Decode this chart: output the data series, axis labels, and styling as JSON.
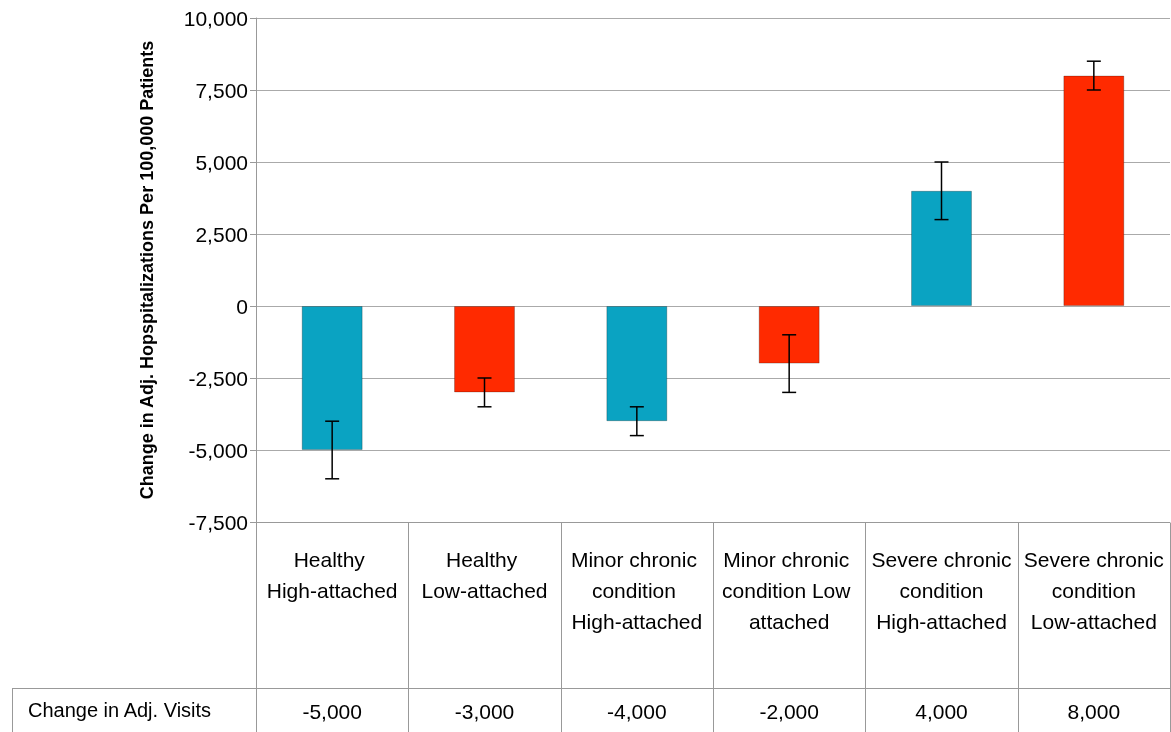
{
  "chart_data": {
    "type": "bar",
    "ylabel": "Change in Adj. Hopspitalizations Per 100,000 Patients",
    "categories": [
      "Healthy High-attached",
      "Healthy Low-attached",
      "Minor chronic condition High-attached",
      "Minor chronic condition Low attached",
      "Severe chronic condition High-attached",
      "Severe chronic condition Low-attached"
    ],
    "values": [
      -5000,
      -3000,
      -4000,
      -2000,
      4000,
      8000
    ],
    "colors": [
      "#0aa3c2",
      "#ff2a00",
      "#0aa3c2",
      "#ff2a00",
      "#0aa3c2",
      "#ff2a00"
    ],
    "errors": [
      1000,
      500,
      500,
      1000,
      1000,
      500
    ],
    "value_labels": [
      "-5,000",
      "-3,000",
      "-4,000",
      "-2,000",
      "4,000",
      "8,000"
    ],
    "annotations": [
      "Change in Adj. Visits"
    ],
    "ylim": [
      -7500,
      10000
    ],
    "yticks": [
      {
        "value": -7500,
        "label": "-7,500"
      },
      {
        "value": -5000,
        "label": "-5,000"
      },
      {
        "value": -2500,
        "label": "-2,500"
      },
      0,
      {
        "value": 2500,
        "label": "2,500"
      },
      {
        "value": 5000,
        "label": "5,000"
      },
      {
        "value": 7500,
        "label": "7,500"
      },
      {
        "value": 10000,
        "label": "10,000"
      }
    ],
    "grid": "y"
  }
}
